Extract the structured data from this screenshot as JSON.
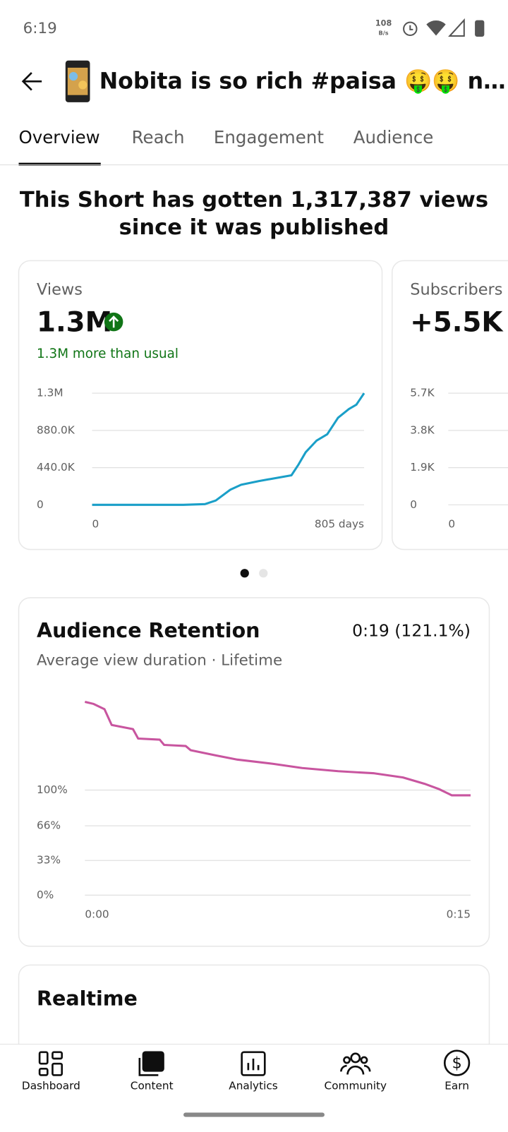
{
  "status_bar": {
    "time": "6:19",
    "net_speed": "108",
    "net_unit": "B/s"
  },
  "header": {
    "title": "Nobita is so rich #paisa 🤑🤑  n…"
  },
  "tabs": [
    "Overview",
    "Reach",
    "Engagement",
    "Audience"
  ],
  "summary": {
    "line1": "This Short has gotten 1,317,387 views",
    "line2": "since it was published"
  },
  "views_card": {
    "label": "Views",
    "value": "1.3M",
    "note": "1.3M more than usual",
    "chart_data": {
      "type": "line",
      "x": [
        0,
        270,
        334,
        366,
        409,
        441,
        494,
        590,
        611,
        632,
        664,
        696,
        728,
        760,
        782,
        805
      ],
      "values": [
        0,
        0,
        8500,
        51000,
        179000,
        238000,
        281000,
        349000,
        477000,
        622000,
        758000,
        835000,
        1030000,
        1133000,
        1184000,
        1320000
      ],
      "color": "#1a9fc8",
      "xlim": [
        0,
        805
      ],
      "xticks": [
        0,
        {
          "value": 805,
          "label": "805 days"
        }
      ],
      "ylim": [
        0,
        1320000
      ],
      "yticks": [
        0,
        {
          "value": 440000,
          "label": "440.0K"
        },
        {
          "value": 880000,
          "label": "880.0K"
        },
        {
          "value": 1320000,
          "label": "1.3M"
        }
      ],
      "grid": true
    }
  },
  "subscribers_card": {
    "label": "Subscribers",
    "value": "+5.5K",
    "chart_data": {
      "type": "line",
      "xticks": [
        0
      ],
      "ylim": [
        0,
        5700
      ],
      "yticks": [
        0,
        {
          "value": 1900,
          "label": "1.9K"
        },
        {
          "value": 3800,
          "label": "3.8K"
        },
        {
          "value": 5700,
          "label": "5.7K"
        }
      ],
      "grid": true
    }
  },
  "retention_card": {
    "title": "Audience Retention",
    "value": "0:19 (121.1%)",
    "subtitle": "Average view duration · Lifetime",
    "chart_data": {
      "type": "line",
      "x": [
        0,
        0.34,
        0.76,
        1.04,
        1.87,
        2.07,
        2.91,
        3.08,
        3.92,
        4.11,
        5.09,
        5.93,
        7.33,
        8.45,
        9.85,
        11.25,
        12.37,
        13.21,
        13.77,
        14.27,
        15
      ],
      "values": [
        184,
        182,
        177,
        162,
        158,
        149,
        148,
        143,
        142,
        138,
        133,
        129,
        125,
        121,
        118,
        116,
        112,
        106,
        101,
        95,
        95
      ],
      "color": "#c8559f",
      "xlim": [
        0,
        15
      ],
      "xticks": [
        {
          "value": 0,
          "label": "0:00"
        },
        {
          "value": 15,
          "label": "0:15"
        }
      ],
      "ylim": [
        0,
        194
      ],
      "yticks": [
        {
          "value": 0,
          "label": "0%"
        },
        {
          "value": 33,
          "label": "33%"
        },
        {
          "value": 66,
          "label": "66%"
        },
        {
          "value": 100,
          "label": "100%"
        }
      ],
      "grid": true
    }
  },
  "realtime_card": {
    "title": "Realtime"
  },
  "nav": [
    "Dashboard",
    "Content",
    "Analytics",
    "Community",
    "Earn"
  ]
}
